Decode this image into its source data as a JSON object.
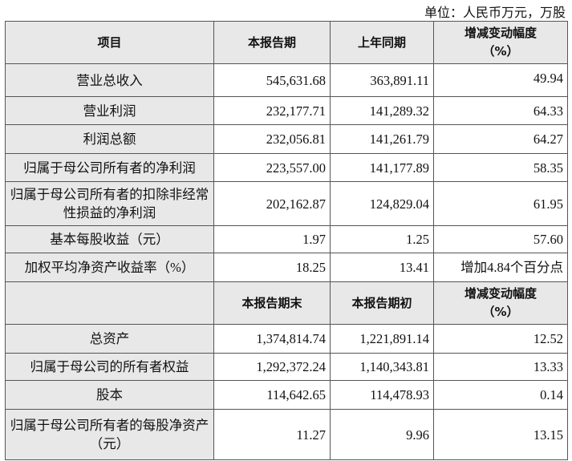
{
  "unit_note": "单位：人民币万元，万股",
  "header1": [
    "项目",
    "本报告期",
    "上年同期",
    "增减变动幅度（%）"
  ],
  "header1_pct_line1": "增减变动幅度",
  "header1_pct_line2": "（%）",
  "rows1": [
    {
      "item": "营业总收入",
      "current": "545,631.68",
      "prior": "363,891.11",
      "change": "49.94"
    },
    {
      "item": "营业利润",
      "current": "232,177.71",
      "prior": "141,289.32",
      "change": "64.33"
    },
    {
      "item": "利润总额",
      "current": "232,056.81",
      "prior": "141,261.79",
      "change": "64.27"
    },
    {
      "item": "归属于母公司所有者的净利润",
      "current": "223,557.00",
      "prior": "141,177.89",
      "change": "58.35"
    },
    {
      "item": "归属于母公司所有者的扣除非经常性损益的净利润",
      "current": "202,162.87",
      "prior": "124,829.04",
      "change": "61.95"
    },
    {
      "item": "基本每股收益（元）",
      "current": "1.97",
      "prior": "1.25",
      "change": "57.60"
    },
    {
      "item": "加权平均净资产收益率（%）",
      "current": "18.25",
      "prior": "13.41",
      "change": "增加4.84个百分点"
    }
  ],
  "header2": [
    "",
    "本报告期末",
    "本报告期初"
  ],
  "header2_pct_line1": "增减变动幅度",
  "header2_pct_line2": "（%）",
  "rows2": [
    {
      "item": "总资产",
      "current": "1,374,814.74",
      "prior": "1,221,891.14",
      "change": "12.52"
    },
    {
      "item": "归属于母公司的所有者权益",
      "current": "1,292,372.24",
      "prior": "1,140,343.81",
      "change": "13.33"
    },
    {
      "item": "股本",
      "current": "114,642.65",
      "prior": "114,478.93",
      "change": "0.14"
    },
    {
      "item": "归属于母公司所有者的每股净资产（元）",
      "current": "11.27",
      "prior": "9.96",
      "change": "13.15"
    }
  ]
}
